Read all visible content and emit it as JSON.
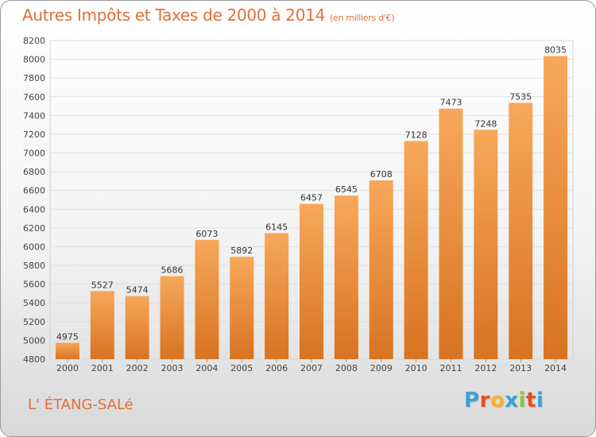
{
  "page": {
    "title": "Autres Impôts et Taxes de 2000 à 2014",
    "subtitle": "(en milliers d'€)",
    "commune": "L' ÉTANG-SALé",
    "brand": {
      "letters": [
        "P",
        "r",
        "o",
        "x",
        "i",
        "t",
        "i"
      ],
      "colors": [
        "#3aa0d8",
        "#e94e1b",
        "#f7b32b",
        "#3aa0d8",
        "#8cc63e",
        "#e94e1b",
        "#3aa0d8"
      ]
    }
  },
  "colors": {
    "title": "#e0703a",
    "bar_top": "#f7a85a",
    "bar_bottom": "#d87321",
    "grid": "#dcdcdc",
    "axis": "#444444"
  },
  "chart_data": {
    "type": "bar",
    "title": "Autres Impôts et Taxes de 2000 à 2014",
    "subtitle": "(en milliers d'€)",
    "categories": [
      "2000",
      "2001",
      "2002",
      "2003",
      "2004",
      "2005",
      "2006",
      "2007",
      "2008",
      "2009",
      "2010",
      "2011",
      "2012",
      "2013",
      "2014"
    ],
    "values": [
      4975,
      5527,
      5474,
      5686,
      6073,
      5892,
      6145,
      6457,
      6545,
      6708,
      7128,
      7473,
      7248,
      7535,
      8035
    ],
    "ylim": [
      4800,
      8200
    ],
    "yticks": [
      4800,
      5000,
      5200,
      5400,
      5600,
      5800,
      6000,
      6200,
      6400,
      6600,
      6800,
      7000,
      7200,
      7400,
      7600,
      7800,
      8000,
      8200
    ],
    "grid": true,
    "data_labels": true
  }
}
